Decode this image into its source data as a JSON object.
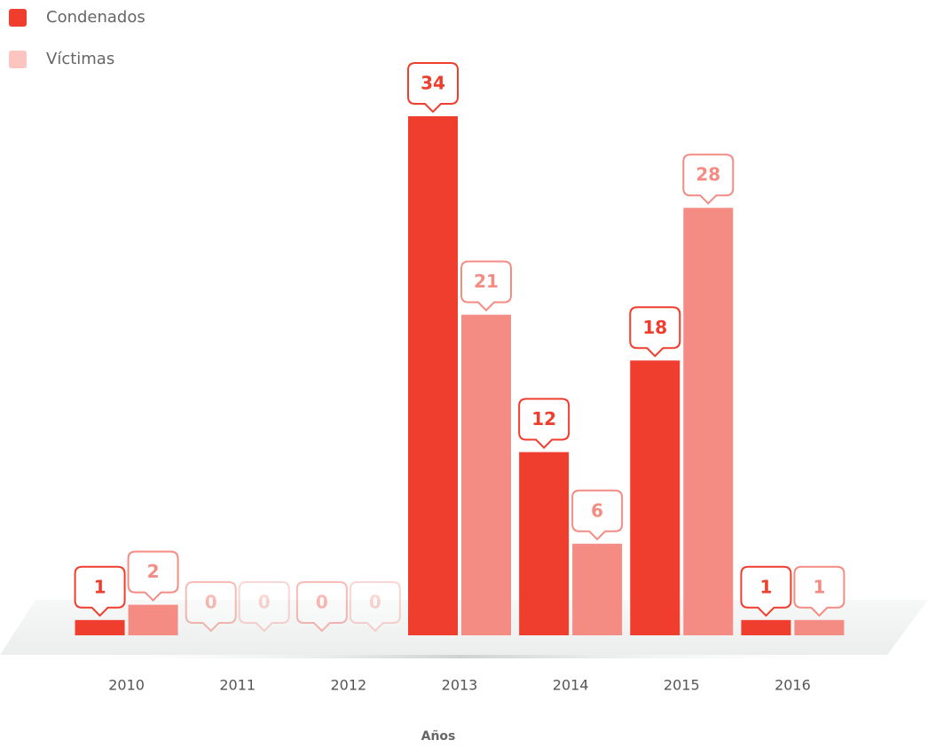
{
  "chart_data": {
    "type": "bar",
    "categories": [
      "2010",
      "2011",
      "2012",
      "2013",
      "2014",
      "2015",
      "2016"
    ],
    "series": [
      {
        "name": "Condenados",
        "color": "#ef3e2e",
        "values": [
          1,
          0,
          0,
          34,
          12,
          18,
          1
        ]
      },
      {
        "name": "Víctimas",
        "color": "#f48c84",
        "legend_color": "#fcc5c0",
        "values": [
          2,
          0,
          0,
          21,
          6,
          28,
          1
        ]
      }
    ],
    "x_label": "Años",
    "ylim": [
      0,
      34
    ],
    "legend": "top-left",
    "data_labels": true
  }
}
